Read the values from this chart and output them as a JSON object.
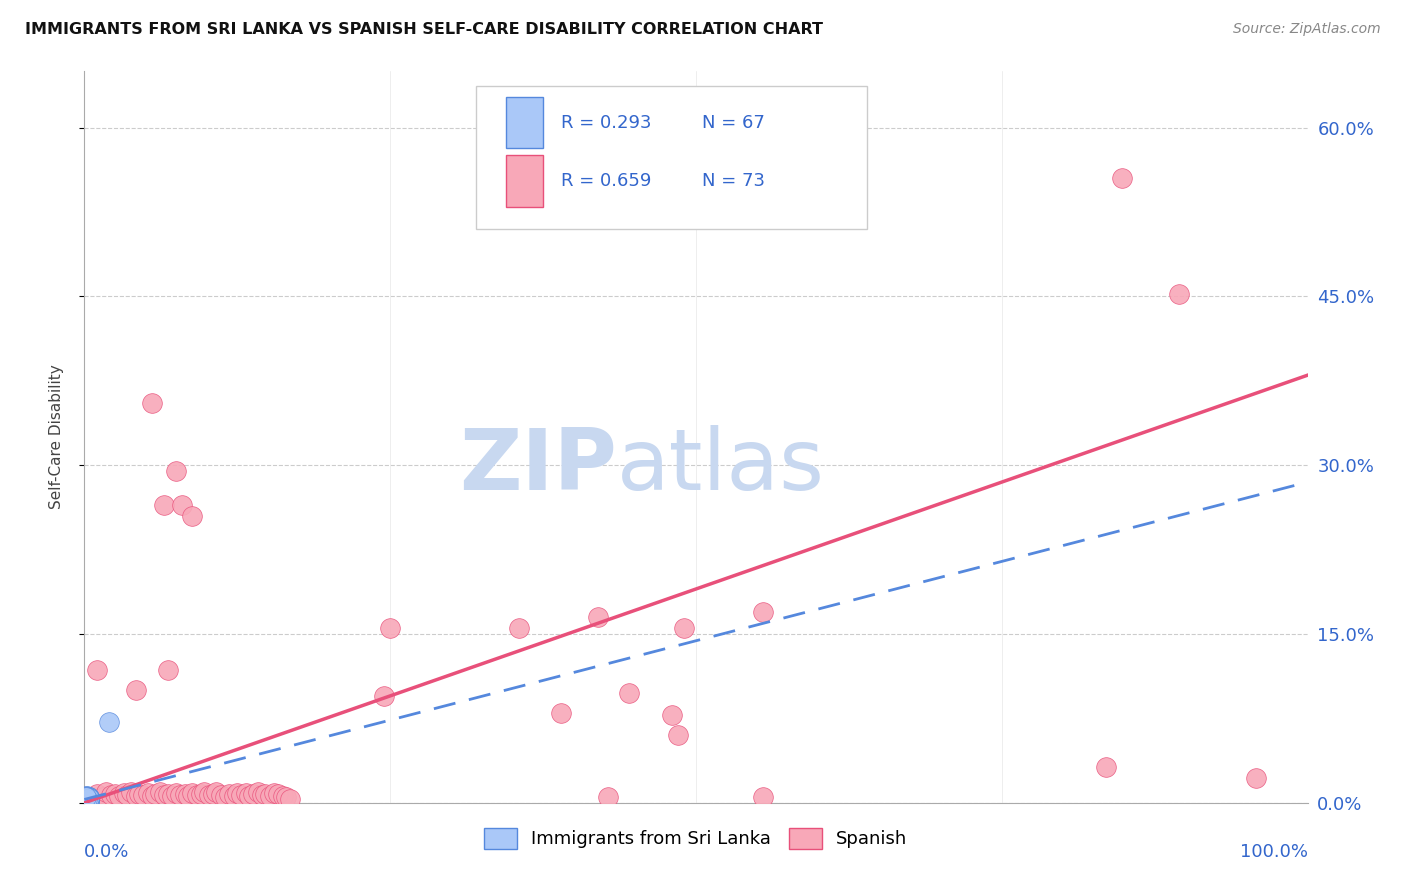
{
  "title": "IMMIGRANTS FROM SRI LANKA VS SPANISH SELF-CARE DISABILITY CORRELATION CHART",
  "source": "Source: ZipAtlas.com",
  "ylabel": "Self-Care Disability",
  "ytick_labels": [
    "0.0%",
    "15.0%",
    "30.0%",
    "45.0%",
    "60.0%"
  ],
  "ytick_values": [
    0.0,
    0.15,
    0.3,
    0.45,
    0.6
  ],
  "xlim": [
    0.0,
    1.0
  ],
  "ylim": [
    0.0,
    0.65
  ],
  "legend_r1": "R = 0.293",
  "legend_n1": "N = 67",
  "legend_r2": "R = 0.659",
  "legend_n2": "N = 73",
  "series1_color": "#aac8f8",
  "series2_color": "#f8a8b8",
  "trendline1_color": "#5588dd",
  "trendline2_color": "#e8507a",
  "watermark_zip": "ZIP",
  "watermark_atlas": "atlas",
  "watermark_color": "#c8d8f0",
  "series1_points": [
    [
      0.001,
      0.003
    ],
    [
      0.002,
      0.004
    ],
    [
      0.001,
      0.005
    ],
    [
      0.003,
      0.002
    ],
    [
      0.002,
      0.003
    ],
    [
      0.001,
      0.004
    ],
    [
      0.003,
      0.003
    ],
    [
      0.002,
      0.005
    ],
    [
      0.001,
      0.002
    ],
    [
      0.003,
      0.004
    ],
    [
      0.002,
      0.002
    ],
    [
      0.001,
      0.006
    ],
    [
      0.004,
      0.003
    ],
    [
      0.002,
      0.004
    ],
    [
      0.003,
      0.005
    ],
    [
      0.001,
      0.003
    ],
    [
      0.004,
      0.004
    ],
    [
      0.002,
      0.003
    ],
    [
      0.003,
      0.002
    ],
    [
      0.001,
      0.004
    ],
    [
      0.002,
      0.005
    ],
    [
      0.003,
      0.003
    ],
    [
      0.004,
      0.002
    ],
    [
      0.001,
      0.005
    ],
    [
      0.002,
      0.006
    ],
    [
      0.003,
      0.004
    ],
    [
      0.004,
      0.003
    ],
    [
      0.002,
      0.002
    ],
    [
      0.001,
      0.003
    ],
    [
      0.003,
      0.005
    ],
    [
      0.004,
      0.004
    ],
    [
      0.002,
      0.003
    ],
    [
      0.001,
      0.004
    ],
    [
      0.003,
      0.002
    ],
    [
      0.002,
      0.004
    ],
    [
      0.004,
      0.005
    ],
    [
      0.001,
      0.002
    ],
    [
      0.003,
      0.003
    ],
    [
      0.002,
      0.005
    ],
    [
      0.004,
      0.002
    ],
    [
      0.001,
      0.004
    ],
    [
      0.002,
      0.003
    ],
    [
      0.003,
      0.004
    ],
    [
      0.004,
      0.003
    ],
    [
      0.002,
      0.002
    ],
    [
      0.001,
      0.005
    ],
    [
      0.003,
      0.003
    ],
    [
      0.004,
      0.004
    ],
    [
      0.002,
      0.004
    ],
    [
      0.001,
      0.003
    ],
    [
      0.003,
      0.005
    ],
    [
      0.004,
      0.002
    ],
    [
      0.002,
      0.003
    ],
    [
      0.001,
      0.004
    ],
    [
      0.003,
      0.003
    ],
    [
      0.004,
      0.005
    ],
    [
      0.002,
      0.002
    ],
    [
      0.001,
      0.004
    ],
    [
      0.003,
      0.003
    ],
    [
      0.004,
      0.004
    ],
    [
      0.002,
      0.005
    ],
    [
      0.001,
      0.003
    ],
    [
      0.003,
      0.002
    ],
    [
      0.004,
      0.004
    ],
    [
      0.002,
      0.003
    ],
    [
      0.001,
      0.005
    ],
    [
      0.02,
      0.072
    ]
  ],
  "series2_points": [
    [
      0.005,
      0.005
    ],
    [
      0.01,
      0.008
    ],
    [
      0.015,
      0.005
    ],
    [
      0.018,
      0.01
    ],
    [
      0.022,
      0.007
    ],
    [
      0.025,
      0.008
    ],
    [
      0.028,
      0.006
    ],
    [
      0.032,
      0.009
    ],
    [
      0.035,
      0.007
    ],
    [
      0.038,
      0.01
    ],
    [
      0.042,
      0.006
    ],
    [
      0.045,
      0.008
    ],
    [
      0.048,
      0.007
    ],
    [
      0.052,
      0.009
    ],
    [
      0.055,
      0.006
    ],
    [
      0.058,
      0.008
    ],
    [
      0.062,
      0.01
    ],
    [
      0.065,
      0.007
    ],
    [
      0.068,
      0.008
    ],
    [
      0.072,
      0.006
    ],
    [
      0.075,
      0.009
    ],
    [
      0.078,
      0.007
    ],
    [
      0.082,
      0.008
    ],
    [
      0.085,
      0.006
    ],
    [
      0.088,
      0.009
    ],
    [
      0.092,
      0.007
    ],
    [
      0.095,
      0.008
    ],
    [
      0.01,
      0.118
    ],
    [
      0.098,
      0.01
    ],
    [
      0.102,
      0.007
    ],
    [
      0.105,
      0.008
    ],
    [
      0.108,
      0.01
    ],
    [
      0.112,
      0.007
    ],
    [
      0.042,
      0.1
    ],
    [
      0.068,
      0.118
    ],
    [
      0.115,
      0.005
    ],
    [
      0.118,
      0.008
    ],
    [
      0.075,
      0.295
    ],
    [
      0.122,
      0.006
    ],
    [
      0.125,
      0.009
    ],
    [
      0.065,
      0.265
    ],
    [
      0.08,
      0.265
    ],
    [
      0.128,
      0.007
    ],
    [
      0.055,
      0.355
    ],
    [
      0.132,
      0.009
    ],
    [
      0.088,
      0.255
    ],
    [
      0.135,
      0.006
    ],
    [
      0.138,
      0.008
    ],
    [
      0.25,
      0.155
    ],
    [
      0.142,
      0.01
    ],
    [
      0.145,
      0.007
    ],
    [
      0.148,
      0.008
    ],
    [
      0.152,
      0.006
    ],
    [
      0.155,
      0.009
    ],
    [
      0.355,
      0.155
    ],
    [
      0.42,
      0.165
    ],
    [
      0.158,
      0.008
    ],
    [
      0.162,
      0.006
    ],
    [
      0.445,
      0.098
    ],
    [
      0.48,
      0.078
    ],
    [
      0.165,
      0.005
    ],
    [
      0.168,
      0.003
    ],
    [
      0.49,
      0.155
    ],
    [
      0.555,
      0.17
    ],
    [
      0.835,
      0.032
    ],
    [
      0.848,
      0.555
    ],
    [
      0.895,
      0.452
    ],
    [
      0.958,
      0.022
    ],
    [
      0.428,
      0.005
    ],
    [
      0.555,
      0.005
    ],
    [
      0.485,
      0.06
    ],
    [
      0.245,
      0.095
    ],
    [
      0.39,
      0.08
    ]
  ],
  "trendline1_x": [
    0.0,
    1.0
  ],
  "trendline1_y": [
    0.003,
    0.285
  ],
  "trendline2_x": [
    0.0,
    1.0
  ],
  "trendline2_y": [
    0.0,
    0.38
  ]
}
